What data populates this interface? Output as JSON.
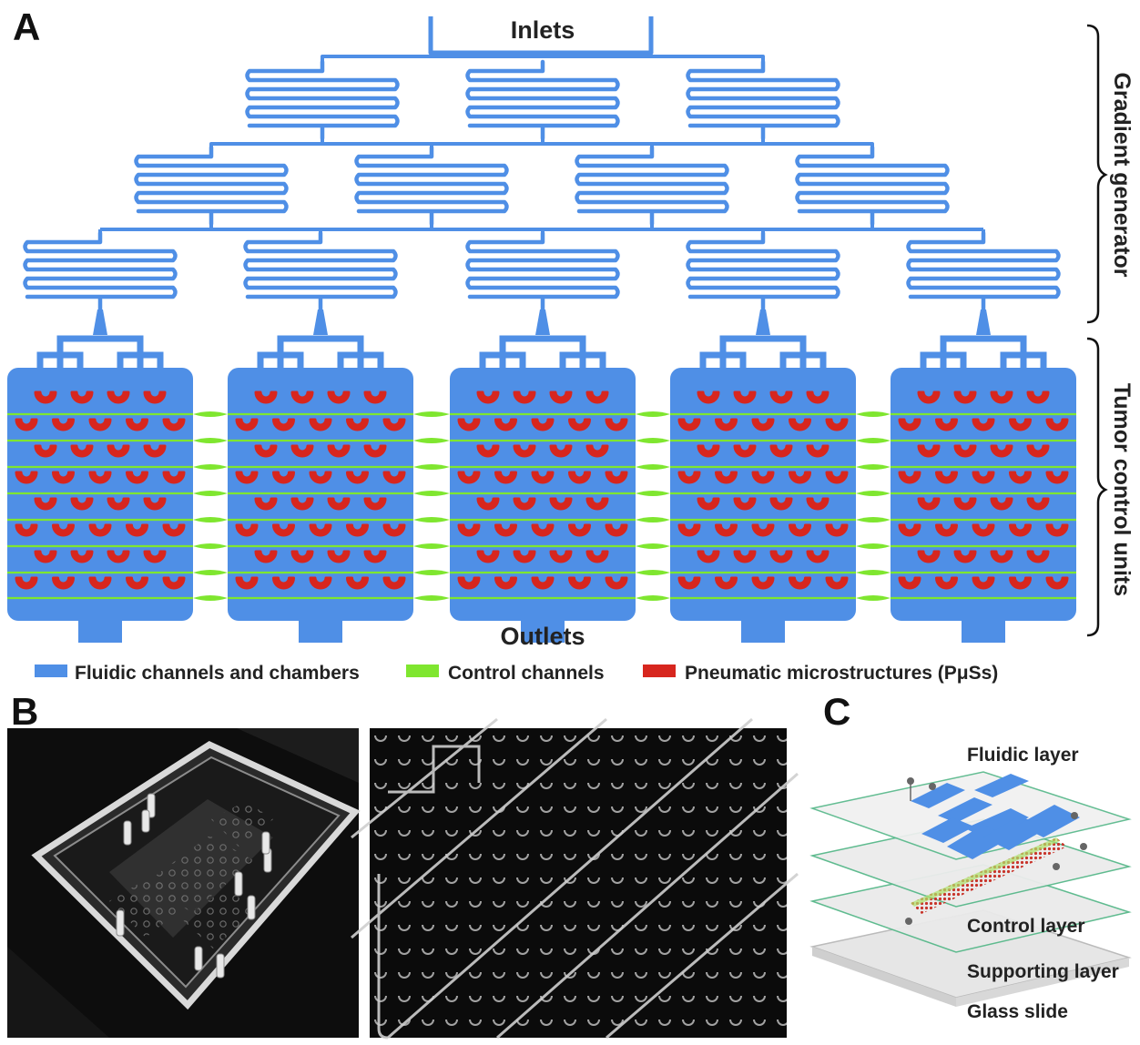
{
  "panels": {
    "a": {
      "letter": "A"
    },
    "b": {
      "letter": "B"
    },
    "c": {
      "letter": "C"
    }
  },
  "panel_a": {
    "inlets_label": "Inlets",
    "outlets_label": "Outlets",
    "bracket_top_label": "Gradient generator",
    "bracket_bottom_label": "Tumor control units",
    "legend": [
      {
        "label": "Fluidic channels and chambers",
        "color": "#4f8fe6"
      },
      {
        "label": "Control channels",
        "color": "#7fe62f"
      },
      {
        "label": "Pneumatic microstructures (PμSs)",
        "color": "#d7261e"
      }
    ],
    "gradient_rows": [
      3,
      4,
      5
    ],
    "chamber_count": 5
  },
  "panel_c": {
    "layers": [
      "Fluidic layer",
      "Control layer",
      "Supporting layer",
      "Glass slide"
    ]
  },
  "colors": {
    "fluidic": "#4f8fe6",
    "control": "#7fe62f",
    "pneumatic": "#d7261e",
    "photo_bg": "#0b0b0b"
  }
}
